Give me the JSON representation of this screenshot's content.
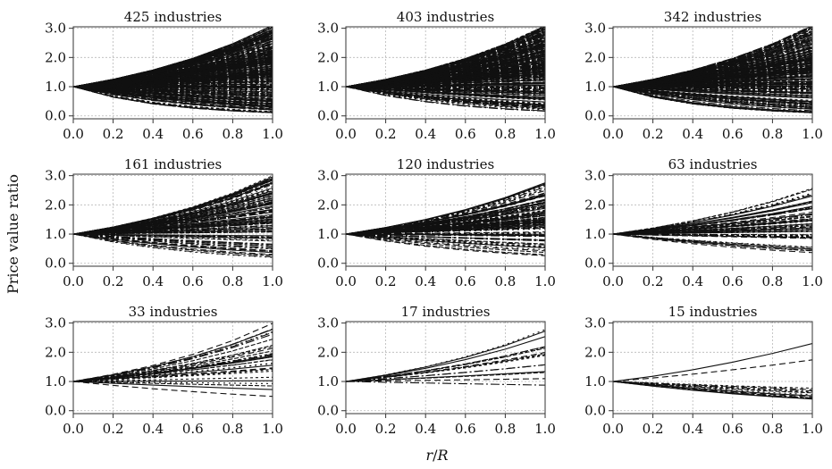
{
  "figure": {
    "ylabel": "Price value ratio",
    "xlabel_r": "r",
    "xlabel_sep": "/",
    "xlabel_R": "R"
  },
  "chart_data": [
    {
      "type": "line",
      "title": "425 industries",
      "n": 425,
      "xlim": [
        0,
        1
      ],
      "ylim": [
        -0.1,
        3.05
      ],
      "xticks": [
        "0.0",
        "0.2",
        "0.4",
        "0.6",
        "0.8",
        "1.0"
      ],
      "yticks": [
        "0.0",
        "1.0",
        "2.0",
        "3.0"
      ],
      "grid": true,
      "x": [
        0,
        0.2,
        0.4,
        0.6,
        0.8,
        1.0
      ],
      "origin_y": 1.0,
      "endpoint_range": [
        0.1,
        3.1
      ]
    },
    {
      "type": "line",
      "title": "403 industries",
      "n": 403,
      "xlim": [
        0,
        1
      ],
      "ylim": [
        -0.1,
        3.05
      ],
      "xticks": [
        "0.0",
        "0.2",
        "0.4",
        "0.6",
        "0.8",
        "1.0"
      ],
      "yticks": [
        "0.0",
        "1.0",
        "2.0",
        "3.0"
      ],
      "grid": true,
      "x": [
        0,
        0.2,
        0.4,
        0.6,
        0.8,
        1.0
      ],
      "origin_y": 1.0,
      "endpoint_range": [
        0.15,
        3.1
      ]
    },
    {
      "type": "line",
      "title": "342 industries",
      "n": 342,
      "xlim": [
        0,
        1
      ],
      "ylim": [
        -0.1,
        3.05
      ],
      "xticks": [
        "0.0",
        "0.2",
        "0.4",
        "0.6",
        "0.8",
        "1.0"
      ],
      "yticks": [
        "0.0",
        "1.0",
        "2.0",
        "3.0"
      ],
      "grid": true,
      "x": [
        0,
        0.2,
        0.4,
        0.6,
        0.8,
        1.0
      ],
      "origin_y": 1.0,
      "endpoint_range": [
        0.1,
        3.1
      ]
    },
    {
      "type": "line",
      "title": "161 industries",
      "n": 161,
      "xlim": [
        0,
        1
      ],
      "ylim": [
        -0.1,
        3.05
      ],
      "xticks": [
        "0.0",
        "0.2",
        "0.4",
        "0.6",
        "0.8",
        "1.0"
      ],
      "yticks": [
        "0.0",
        "1.0",
        "2.0",
        "3.0"
      ],
      "grid": true,
      "x": [
        0,
        0.2,
        0.4,
        0.6,
        0.8,
        1.0
      ],
      "origin_y": 1.0,
      "endpoint_range": [
        0.2,
        3.0
      ]
    },
    {
      "type": "line",
      "title": "120 industries",
      "n": 120,
      "xlim": [
        0,
        1
      ],
      "ylim": [
        -0.1,
        3.05
      ],
      "xticks": [
        "0.0",
        "0.2",
        "0.4",
        "0.6",
        "0.8",
        "1.0"
      ],
      "yticks": [
        "0.0",
        "1.0",
        "2.0",
        "3.0"
      ],
      "grid": true,
      "x": [
        0,
        0.2,
        0.4,
        0.6,
        0.8,
        1.0
      ],
      "origin_y": 1.0,
      "endpoint_range": [
        0.25,
        2.8
      ]
    },
    {
      "type": "line",
      "title": "63 industries",
      "n": 63,
      "xlim": [
        0,
        1
      ],
      "ylim": [
        -0.1,
        3.05
      ],
      "xticks": [
        "0.0",
        "0.2",
        "0.4",
        "0.6",
        "0.8",
        "1.0"
      ],
      "yticks": [
        "0.0",
        "1.0",
        "2.0",
        "3.0"
      ],
      "grid": true,
      "x": [
        0,
        0.2,
        0.4,
        0.6,
        0.8,
        1.0
      ],
      "origin_y": 1.0,
      "endpoint_range": [
        0.3,
        2.6
      ]
    },
    {
      "type": "line",
      "title": "33 industries",
      "n": 33,
      "xlim": [
        0,
        1
      ],
      "ylim": [
        -0.1,
        3.05
      ],
      "xticks": [
        "0.0",
        "0.2",
        "0.4",
        "0.6",
        "0.8",
        "1.0"
      ],
      "yticks": [
        "0.0",
        "1.0",
        "2.0",
        "3.0"
      ],
      "grid": true,
      "x": [
        0,
        0.2,
        0.4,
        0.6,
        0.8,
        1.0
      ],
      "origin_y": 1.0,
      "endpoint_range": [
        0.35,
        3.0
      ]
    },
    {
      "type": "line",
      "title": "17 industries",
      "n": 17,
      "xlim": [
        0,
        1
      ],
      "ylim": [
        -0.1,
        3.05
      ],
      "xticks": [
        "0.0",
        "0.2",
        "0.4",
        "0.6",
        "0.8",
        "1.0"
      ],
      "yticks": [
        "0.0",
        "1.0",
        "2.0",
        "3.0"
      ],
      "grid": true,
      "x": [
        0,
        0.2,
        0.4,
        0.6,
        0.8,
        1.0
      ],
      "origin_y": 1.0,
      "endpoint_range": [
        0.4,
        2.8
      ]
    },
    {
      "type": "line",
      "title": "15 industries",
      "n": 15,
      "xlim": [
        0,
        1
      ],
      "ylim": [
        -0.1,
        3.05
      ],
      "xticks": [
        "0.0",
        "0.2",
        "0.4",
        "0.6",
        "0.8",
        "1.0"
      ],
      "yticks": [
        "0.0",
        "1.0",
        "2.0",
        "3.0"
      ],
      "grid": true,
      "x": [
        0,
        0.2,
        0.4,
        0.6,
        0.8,
        1.0
      ],
      "origin_y": 1.0,
      "endpoint_range": [
        0.4,
        2.3
      ],
      "series": [
        {
          "values": [
            1.0,
            1.18,
            1.4,
            1.66,
            1.96,
            2.3
          ]
        },
        {
          "values": [
            1.0,
            1.12,
            1.25,
            1.4,
            1.56,
            1.74
          ]
        },
        {
          "values": [
            1.0,
            0.95,
            0.9,
            0.85,
            0.81,
            0.77
          ]
        },
        {
          "values": [
            1.0,
            0.93,
            0.86,
            0.8,
            0.74,
            0.68
          ]
        },
        {
          "values": [
            1.0,
            0.91,
            0.82,
            0.74,
            0.67,
            0.61
          ]
        },
        {
          "values": [
            1.0,
            0.89,
            0.79,
            0.7,
            0.62,
            0.55
          ]
        },
        {
          "values": [
            1.0,
            0.88,
            0.77,
            0.67,
            0.58,
            0.51
          ]
        },
        {
          "values": [
            1.0,
            0.87,
            0.75,
            0.64,
            0.55,
            0.47
          ]
        },
        {
          "values": [
            1.0,
            0.86,
            0.73,
            0.62,
            0.52,
            0.44
          ]
        },
        {
          "values": [
            1.0,
            0.85,
            0.72,
            0.61,
            0.51,
            0.43
          ]
        },
        {
          "values": [
            1.0,
            0.85,
            0.71,
            0.6,
            0.5,
            0.42
          ]
        },
        {
          "values": [
            1.0,
            0.84,
            0.7,
            0.59,
            0.49,
            0.41
          ]
        },
        {
          "values": [
            1.0,
            0.84,
            0.7,
            0.58,
            0.48,
            0.4
          ]
        },
        {
          "values": [
            1.0,
            0.94,
            0.88,
            0.83,
            0.78,
            0.72
          ]
        },
        {
          "values": [
            1.0,
            0.92,
            0.84,
            0.77,
            0.7,
            0.64
          ]
        }
      ]
    }
  ]
}
